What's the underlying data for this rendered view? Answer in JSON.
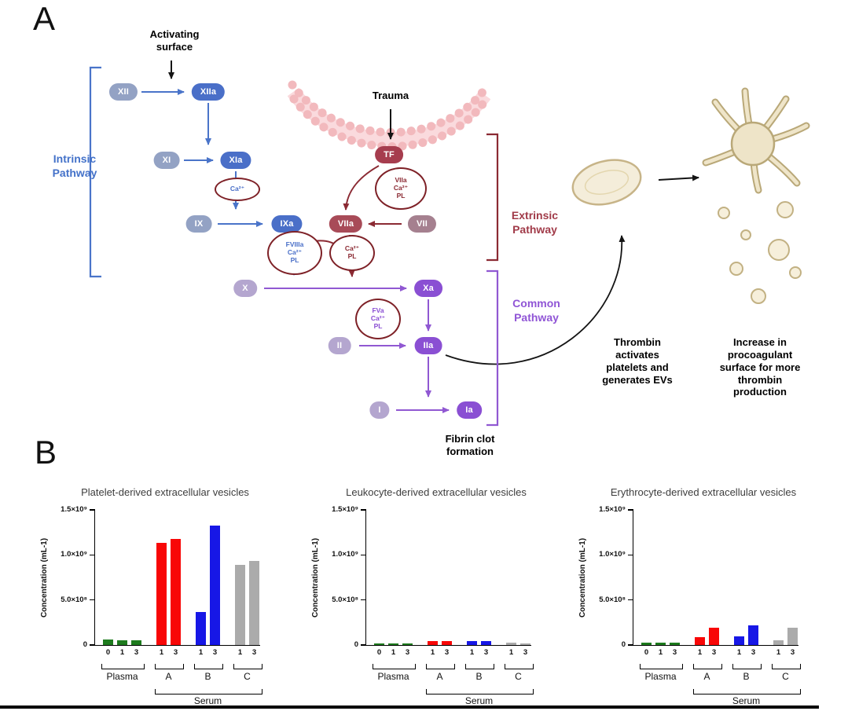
{
  "panels": {
    "a_label": "A",
    "b_label": "B"
  },
  "colors": {
    "intrinsic_blue": "#4a6fc8",
    "extrinsic_maroon": "#8b2a33",
    "common_purple": "#8a4fd3",
    "membrane_pink": "#f2b9bd",
    "platelet_beige": "#f4edda"
  },
  "diagram": {
    "labels": {
      "activating_surface": "Activating\nsurface",
      "trauma": "Trauma",
      "fibrin": "Fibrin clot\nformation",
      "thrombin_note": "Thrombin\nactivates\nplatelets and\ngenerates EVs",
      "increase_note": "Increase in\nprocoagulant\nsurface for more\nthrombin\nproduction"
    },
    "pathways": {
      "intrinsic": "Intrinsic\nPathway",
      "extrinsic": "Extrinsic\nPathway",
      "common": "Common\nPathway"
    },
    "nodes": {
      "xii": "XII",
      "xiia": "XIIa",
      "xi": "XI",
      "xia": "XIa",
      "ix": "IX",
      "ixa": "IXa",
      "x": "X",
      "xa": "Xa",
      "tf": "TF",
      "vii": "VII",
      "viia": "VIIa",
      "ii": "II",
      "iia": "IIa",
      "i": "I",
      "ia": "Ia"
    },
    "complexes": {
      "ca_xia": "Ca²⁺",
      "fviiia": "FVIIIa\nCa²⁺\nPL",
      "viia_complex": "VIIa\nCa²⁺\nPL",
      "ca_pl": "Ca²⁺\nPL",
      "fva": "FVa\nCa²⁺\nPL"
    }
  },
  "chart_data": [
    {
      "type": "bar",
      "title": "Platelet-derived extracellular vesicles",
      "ylabel": "Concentration (mL-1)",
      "ylim": [
        0,
        1500000000.0
      ],
      "grid": false,
      "y_ticks": [
        {
          "value": 0,
          "label": "0"
        },
        {
          "value": 500000000.0,
          "label": "5.0×10⁸"
        },
        {
          "value": 1000000000.0,
          "label": "1.0×10⁹"
        },
        {
          "value": 1500000000.0,
          "label": "1.5×10⁹"
        }
      ],
      "groups": [
        {
          "label": "Plasma",
          "color": "#1e7b1e",
          "bars": [
            {
              "x": "0",
              "value": 60000000.0
            },
            {
              "x": "1",
              "value": 55000000.0
            },
            {
              "x": "3",
              "value": 55000000.0
            }
          ]
        },
        {
          "label": "A",
          "color": "#f80707",
          "bars": [
            {
              "x": "1",
              "value": 1130000000.0
            },
            {
              "x": "3",
              "value": 1180000000.0
            }
          ]
        },
        {
          "label": "B",
          "color": "#1717e6",
          "bars": [
            {
              "x": "1",
              "value": 370000000.0
            },
            {
              "x": "3",
              "value": 1330000000.0
            }
          ]
        },
        {
          "label": "C",
          "color": "#ababab",
          "bars": [
            {
              "x": "1",
              "value": 890000000.0
            },
            {
              "x": "3",
              "value": 930000000.0
            }
          ]
        }
      ],
      "group_bracket_label": "Serum",
      "group_bracket_groups": [
        "A",
        "B",
        "C"
      ]
    },
    {
      "type": "bar",
      "title": "Leukocyte-derived extracellular vesicles",
      "ylabel": "Concentration (mL-1)",
      "ylim": [
        0,
        1500000000.0
      ],
      "grid": false,
      "y_ticks": [
        {
          "value": 0,
          "label": "0"
        },
        {
          "value": 500000000.0,
          "label": "5.0×10⁸"
        },
        {
          "value": 1000000000.0,
          "label": "1.0×10⁹"
        },
        {
          "value": 1500000000.0,
          "label": "1.5×10⁹"
        }
      ],
      "groups": [
        {
          "label": "Plasma",
          "color": "#1e7b1e",
          "bars": [
            {
              "x": "0",
              "value": 20000000.0
            },
            {
              "x": "1",
              "value": 20000000.0
            },
            {
              "x": "3",
              "value": 20000000.0
            }
          ]
        },
        {
          "label": "A",
          "color": "#f80707",
          "bars": [
            {
              "x": "1",
              "value": 40000000.0
            },
            {
              "x": "3",
              "value": 45000000.0
            }
          ]
        },
        {
          "label": "B",
          "color": "#1717e6",
          "bars": [
            {
              "x": "1",
              "value": 40000000.0
            },
            {
              "x": "3",
              "value": 40000000.0
            }
          ]
        },
        {
          "label": "C",
          "color": "#ababab",
          "bars": [
            {
              "x": "1",
              "value": 30000000.0
            },
            {
              "x": "3",
              "value": 20000000.0
            }
          ]
        }
      ],
      "group_bracket_label": "Serum",
      "group_bracket_groups": [
        "A",
        "B",
        "C"
      ]
    },
    {
      "type": "bar",
      "title": "Erythrocyte-derived extracellular vesicles",
      "ylabel": "Concentration (mL-1)",
      "ylim": [
        0,
        1500000000.0
      ],
      "grid": false,
      "y_ticks": [
        {
          "value": 0,
          "label": "0"
        },
        {
          "value": 500000000.0,
          "label": "5.0×10⁸"
        },
        {
          "value": 1000000000.0,
          "label": "1.0×10⁹"
        },
        {
          "value": 1500000000.0,
          "label": "1.5×10⁹"
        }
      ],
      "groups": [
        {
          "label": "Plasma",
          "color": "#1e7b1e",
          "bars": [
            {
              "x": "0",
              "value": 30000000.0
            },
            {
              "x": "1",
              "value": 30000000.0
            },
            {
              "x": "3",
              "value": 30000000.0
            }
          ]
        },
        {
          "label": "A",
          "color": "#f80707",
          "bars": [
            {
              "x": "1",
              "value": 90000000.0
            },
            {
              "x": "3",
              "value": 190000000.0
            }
          ]
        },
        {
          "label": "B",
          "color": "#1717e6",
          "bars": [
            {
              "x": "1",
              "value": 100000000.0
            },
            {
              "x": "3",
              "value": 220000000.0
            }
          ]
        },
        {
          "label": "C",
          "color": "#ababab",
          "bars": [
            {
              "x": "1",
              "value": 50000000.0
            },
            {
              "x": "3",
              "value": 190000000.0
            }
          ]
        }
      ],
      "group_bracket_label": "Serum",
      "group_bracket_groups": [
        "A",
        "B",
        "C"
      ]
    }
  ]
}
